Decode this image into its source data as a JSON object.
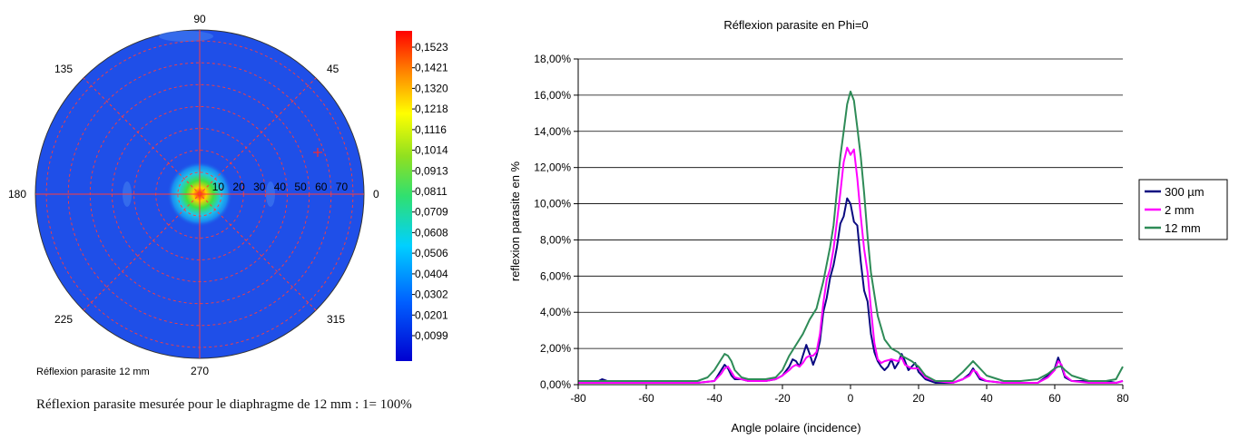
{
  "polar_figure": {
    "angle_labels": [
      "0",
      "45",
      "90",
      "135",
      "180",
      "225",
      "270",
      "315"
    ],
    "radial_labels": [
      "10",
      "20",
      "30",
      "40",
      "50",
      "60",
      "70"
    ],
    "colorbar_labels": [
      "0,1523",
      "0,1421",
      "0,1320",
      "0,1218",
      "0,1116",
      "0,1014",
      "0,0913",
      "0,0811",
      "0,0709",
      "0,0608",
      "0,0506",
      "0,0404",
      "0,0302",
      "0,0201",
      "0,0099"
    ],
    "inner_label": "Réflexion parasite 12 mm",
    "colors": {
      "background": "#1f4fe8",
      "grid": "#ff3b3b",
      "peak": "#ff2000"
    }
  },
  "caption": "Réflexion parasite mesurée pour le diaphragme de 12 mm : 1= 100%",
  "chart_data": {
    "type": "line",
    "title": "Réflexion parasite en Phi=0",
    "xlabel": "Angle polaire (incidence)",
    "ylabel": "reflexion parasite en %",
    "xlim": [
      -80,
      80
    ],
    "ylim": [
      0,
      18
    ],
    "x_ticks": [
      "-80",
      "-60",
      "-40",
      "-20",
      "0",
      "20",
      "40",
      "60",
      "80"
    ],
    "y_ticks": [
      "0,00%",
      "2,00%",
      "4,00%",
      "6,00%",
      "8,00%",
      "10,00%",
      "12,00%",
      "14,00%",
      "16,00%",
      "18,00%"
    ],
    "grid": "horizontal",
    "legend_position": "right",
    "series": [
      {
        "name": "300 µm",
        "color": "#0a0a80",
        "x": [
          -80,
          -75,
          -73,
          -70,
          -65,
          -60,
          -55,
          -50,
          -45,
          -40,
          -38,
          -37,
          -36,
          -35,
          -34,
          -32,
          -30,
          -28,
          -25,
          -22,
          -20,
          -18,
          -17,
          -16,
          -15,
          -14,
          -13,
          -12,
          -11,
          -10,
          -9,
          -8,
          -7,
          -6,
          -5,
          -4,
          -3,
          -2,
          -1,
          0,
          1,
          2,
          3,
          4,
          5,
          6,
          7,
          8,
          9,
          10,
          11,
          12,
          13,
          14,
          15,
          16,
          17,
          18,
          19,
          20,
          22,
          25,
          30,
          33,
          35,
          36,
          37,
          38,
          40,
          45,
          50,
          55,
          58,
          60,
          61,
          62,
          63,
          65,
          70,
          75,
          78,
          80
        ],
        "y": [
          0.1,
          0.1,
          0.3,
          0.1,
          0.1,
          0.2,
          0.1,
          0.1,
          0.1,
          0.2,
          0.8,
          1.1,
          0.9,
          0.5,
          0.3,
          0.3,
          0.2,
          0.2,
          0.2,
          0.3,
          0.5,
          1.0,
          1.4,
          1.3,
          1.0,
          1.6,
          2.2,
          1.7,
          1.1,
          1.6,
          2.4,
          4.0,
          4.8,
          5.9,
          6.6,
          7.6,
          8.9,
          9.3,
          10.3,
          10.0,
          9.0,
          8.8,
          6.8,
          5.2,
          4.6,
          2.8,
          1.8,
          1.3,
          1.0,
          0.8,
          1.0,
          1.4,
          0.9,
          1.2,
          1.7,
          1.3,
          0.8,
          1.0,
          1.2,
          0.7,
          0.3,
          0.1,
          0.1,
          0.3,
          0.6,
          0.9,
          0.6,
          0.3,
          0.2,
          0.1,
          0.1,
          0.1,
          0.5,
          0.9,
          1.5,
          1.0,
          0.4,
          0.2,
          0.2,
          0.2,
          0.1,
          0.2
        ]
      },
      {
        "name": "2 mm",
        "color": "#ff00ff",
        "x": [
          -80,
          -70,
          -60,
          -50,
          -45,
          -40,
          -38,
          -37,
          -36,
          -35,
          -34,
          -32,
          -30,
          -28,
          -25,
          -22,
          -20,
          -18,
          -17,
          -16,
          -15,
          -14,
          -13,
          -12,
          -11,
          -10,
          -9,
          -8,
          -7,
          -6,
          -5,
          -4,
          -3,
          -2,
          -1,
          0,
          1,
          2,
          3,
          4,
          5,
          6,
          7,
          8,
          9,
          10,
          12,
          14,
          15,
          16,
          18,
          20,
          22,
          25,
          30,
          33,
          35,
          36,
          37,
          38,
          40,
          45,
          50,
          55,
          58,
          60,
          61,
          62,
          63,
          65,
          70,
          75,
          78,
          80
        ],
        "y": [
          0.1,
          0.1,
          0.1,
          0.1,
          0.1,
          0.2,
          0.6,
          0.9,
          1.0,
          0.7,
          0.4,
          0.3,
          0.2,
          0.2,
          0.2,
          0.3,
          0.5,
          0.8,
          1.0,
          1.1,
          1.0,
          1.2,
          1.5,
          1.6,
          1.6,
          1.8,
          2.8,
          4.5,
          5.8,
          6.4,
          7.5,
          9.0,
          10.6,
          12.3,
          13.1,
          12.7,
          13.0,
          11.4,
          9.3,
          7.5,
          6.2,
          4.2,
          2.3,
          1.4,
          1.2,
          1.3,
          1.4,
          1.3,
          1.5,
          1.1,
          0.9,
          0.9,
          0.4,
          0.2,
          0.1,
          0.3,
          0.5,
          0.8,
          0.7,
          0.4,
          0.2,
          0.1,
          0.1,
          0.1,
          0.4,
          0.8,
          1.3,
          1.1,
          0.5,
          0.2,
          0.1,
          0.1,
          0.1,
          0.2
        ]
      },
      {
        "name": "12 mm",
        "color": "#2e8b57",
        "x": [
          -80,
          -70,
          -60,
          -50,
          -45,
          -42,
          -40,
          -38,
          -37,
          -36,
          -35,
          -34,
          -32,
          -30,
          -28,
          -25,
          -22,
          -20,
          -18,
          -16,
          -14,
          -12,
          -10,
          -8,
          -6,
          -5,
          -4,
          -3,
          -2,
          -1,
          0,
          1,
          2,
          3,
          4,
          5,
          6,
          8,
          10,
          12,
          14,
          15,
          16,
          18,
          20,
          22,
          25,
          30,
          33,
          35,
          36,
          37,
          40,
          45,
          50,
          55,
          58,
          60,
          61,
          62,
          63,
          65,
          70,
          75,
          78,
          80
        ],
        "y": [
          0.2,
          0.2,
          0.2,
          0.2,
          0.2,
          0.4,
          0.8,
          1.4,
          1.7,
          1.6,
          1.3,
          0.8,
          0.4,
          0.3,
          0.3,
          0.3,
          0.4,
          0.8,
          1.6,
          2.2,
          2.8,
          3.6,
          4.2,
          5.7,
          7.6,
          8.8,
          10.7,
          12.6,
          14.0,
          15.5,
          16.2,
          15.7,
          14.2,
          12.6,
          10.6,
          8.2,
          6.2,
          3.8,
          2.5,
          2.0,
          1.8,
          1.6,
          1.5,
          1.3,
          1.0,
          0.5,
          0.2,
          0.2,
          0.7,
          1.1,
          1.3,
          1.1,
          0.5,
          0.2,
          0.2,
          0.3,
          0.6,
          0.9,
          1.0,
          1.0,
          0.8,
          0.5,
          0.2,
          0.2,
          0.3,
          1.0
        ]
      }
    ]
  }
}
